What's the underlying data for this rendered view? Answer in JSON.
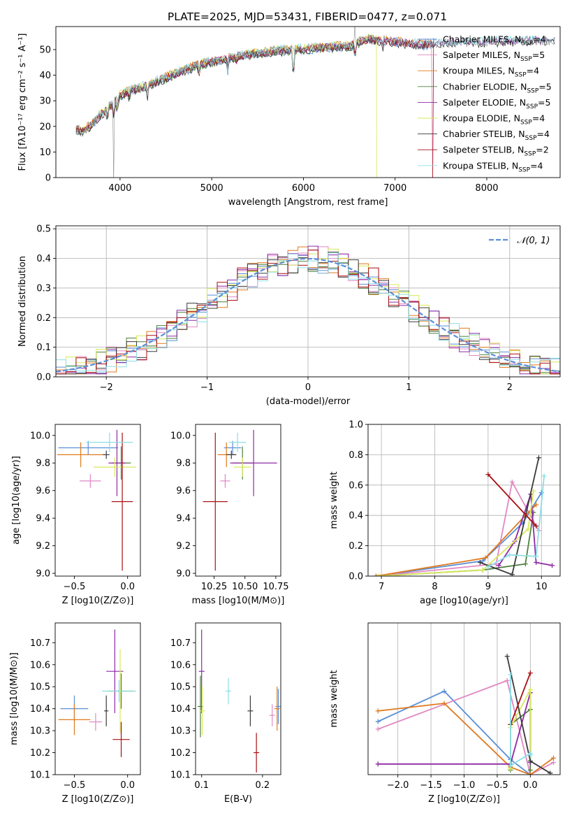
{
  "colors": {
    "chabrier_miles": "#5b8fd6",
    "salpeter_miles": "#e088c3",
    "kroupa_miles": "#e07a1f",
    "chabrier_elodie": "#4f7f3e",
    "salpeter_elodie": "#8e2aa6",
    "kroupa_elodie": "#d8e85a",
    "chabrier_stelib": "#3a3a3a",
    "salpeter_stelib": "#a80f12",
    "kroupa_stelib": "#8ddde6",
    "gauss": "#5b8fd6"
  },
  "title": "PLATE=2025, MJD=53431, FIBERID=0477, z=0.071",
  "chart_data": [
    {
      "id": "spectrum",
      "type": "line",
      "xlabel": "wavelength [Angstrom, rest frame]",
      "ylabel": "Flux [fλ10⁻¹⁷ erg cm⁻² s⁻¹ A⁻¹]",
      "xlim": [
        3300,
        8800
      ],
      "ylim": [
        0,
        59
      ],
      "xticks": [
        4000,
        5000,
        6000,
        7000,
        8000
      ],
      "yticks": [
        0,
        10,
        20,
        30,
        40,
        50
      ],
      "continuum": {
        "x": [
          3520,
          3600,
          3700,
          3800,
          3900,
          4000,
          4100,
          4200,
          4300,
          4500,
          4700,
          4900,
          5100,
          5300,
          5500,
          5700,
          5900,
          6100,
          6300,
          6500,
          6700,
          6900,
          7100,
          7300,
          7500,
          8000,
          8500,
          8750
        ],
        "y": [
          19,
          18,
          21,
          25,
          28,
          32,
          34,
          35,
          36,
          39,
          42,
          44.5,
          46,
          47.5,
          48.5,
          49.5,
          50,
          50.5,
          51,
          51.5,
          54,
          53.5,
          52.5,
          52,
          52.5,
          53,
          53.5,
          53.5
        ]
      },
      "legend": [
        {
          "label": "Chabrier MILES, N_SSP=4",
          "color_key": "chabrier_miles"
        },
        {
          "label": "Salpeter MILES, N_SSP=5",
          "color_key": "salpeter_miles"
        },
        {
          "label": "Kroupa MILES, N_SSP=4",
          "color_key": "kroupa_miles"
        },
        {
          "label": "Chabrier ELODIE, N_SSP=5",
          "color_key": "chabrier_elodie"
        },
        {
          "label": "Salpeter ELODIE, N_SSP=5",
          "color_key": "salpeter_elodie"
        },
        {
          "label": "Kroupa ELODIE, N_SSP=4",
          "color_key": "kroupa_elodie"
        },
        {
          "label": "Chabrier STELIB, N_SSP=4",
          "color_key": "chabrier_stelib"
        },
        {
          "label": "Salpeter STELIB, N_SSP=2",
          "color_key": "salpeter_stelib"
        },
        {
          "label": "Kroupa STELIB, N_SSP=4",
          "color_key": "kroupa_stelib"
        }
      ]
    },
    {
      "id": "residuals",
      "type": "histogram",
      "xlabel": "(data-model)/error",
      "ylabel": "Normed distribution",
      "xlim": [
        -2.5,
        2.5
      ],
      "ylim": [
        0,
        0.51
      ],
      "xticks": [
        -2,
        -1,
        0,
        1,
        2
      ],
      "yticks": [
        0.0,
        0.1,
        0.2,
        0.3,
        0.4,
        0.5
      ],
      "legend_label": "𝒩(0, 1)",
      "bin_width": 0.1,
      "bin_start": -2.5
    },
    {
      "id": "age_vs_Z",
      "type": "errorbar",
      "xlabel": "Z [log10(Z/Z⊙)]",
      "ylabel": "age  [log10(age/yr)]",
      "xlim": [
        -0.68,
        0.12
      ],
      "ylim": [
        8.98,
        10.08
      ],
      "xticks": [
        -0.5,
        0.0
      ],
      "yticks": [
        9.0,
        9.2,
        9.4,
        9.6,
        9.8,
        10.0
      ],
      "points": [
        {
          "color_key": "chabrier_miles",
          "x": -0.37,
          "xerr": 0.28,
          "y": 9.91,
          "yerr": 0.05
        },
        {
          "color_key": "salpeter_miles",
          "x": -0.35,
          "xerr": 0.1,
          "y": 9.67,
          "yerr": 0.05
        },
        {
          "color_key": "kroupa_miles",
          "x": -0.44,
          "xerr": 0.22,
          "y": 9.86,
          "yerr": 0.09
        },
        {
          "color_key": "chabrier_elodie",
          "x": -0.06,
          "xerr": 0.09,
          "y": 9.8,
          "yerr": 0.12
        },
        {
          "color_key": "salpeter_elodie",
          "x": -0.1,
          "xerr": 0.08,
          "y": 9.8,
          "yerr": 0.24
        },
        {
          "color_key": "kroupa_elodie",
          "x": -0.12,
          "xerr": 0.2,
          "y": 9.77,
          "yerr": 0.07
        },
        {
          "color_key": "chabrier_stelib",
          "x": -0.2,
          "xerr": 0.03,
          "y": 9.86,
          "yerr": 0.03
        },
        {
          "color_key": "salpeter_stelib",
          "x": -0.05,
          "xerr": 0.1,
          "y": 9.52,
          "yerr": 0.5
        },
        {
          "color_key": "kroupa_stelib",
          "x": -0.17,
          "xerr": 0.22,
          "y": 9.95,
          "yerr": 0.07
        }
      ]
    },
    {
      "id": "age_vs_mass",
      "type": "errorbar",
      "xlabel": "mass [log10(M/M⊙)]",
      "ylabel": "",
      "xlim": [
        10.1,
        10.79
      ],
      "ylim": [
        8.98,
        10.08
      ],
      "xticks": [
        10.25,
        10.5,
        10.75
      ],
      "yticks": [
        9.0,
        9.2,
        9.4,
        9.6,
        9.8,
        10.0
      ],
      "points": [
        {
          "color_key": "chabrier_miles",
          "x": 10.4,
          "xerr": 0.07,
          "y": 9.91,
          "yerr": 0.05
        },
        {
          "color_key": "salpeter_miles",
          "x": 10.34,
          "xerr": 0.04,
          "y": 9.67,
          "yerr": 0.05
        },
        {
          "color_key": "kroupa_miles",
          "x": 10.35,
          "xerr": 0.07,
          "y": 9.86,
          "yerr": 0.09
        },
        {
          "color_key": "chabrier_elodie",
          "x": 10.48,
          "xerr": 0.08,
          "y": 9.8,
          "yerr": 0.12
        },
        {
          "color_key": "salpeter_elodie",
          "x": 10.57,
          "xerr": 0.19,
          "y": 9.8,
          "yerr": 0.24
        },
        {
          "color_key": "kroupa_elodie",
          "x": 10.48,
          "xerr": 0.07,
          "y": 9.77,
          "yerr": 0.07
        },
        {
          "color_key": "chabrier_stelib",
          "x": 10.39,
          "xerr": 0.04,
          "y": 9.86,
          "yerr": 0.03
        },
        {
          "color_key": "salpeter_stelib",
          "x": 10.26,
          "xerr": 0.1,
          "y": 9.52,
          "yerr": 0.5
        },
        {
          "color_key": "kroupa_stelib",
          "x": 10.44,
          "xerr": 0.07,
          "y": 9.95,
          "yerr": 0.07
        }
      ]
    },
    {
      "id": "weight_vs_age",
      "type": "line",
      "xlabel": "age  [log10(age/yr)]",
      "ylabel": "mass weight",
      "xlim": [
        6.75,
        10.35
      ],
      "ylim": [
        0,
        1.0
      ],
      "xticks": [
        7,
        8,
        9,
        10
      ],
      "yticks": [
        0.0,
        0.2,
        0.4,
        0.6,
        0.8,
        1.0
      ],
      "series": [
        {
          "color_key": "chabrier_miles",
          "x": [
            6.9,
            8.9,
            9.65,
            10.0
          ],
          "y": [
            0.0,
            0.1,
            0.35,
            0.55
          ]
        },
        {
          "color_key": "salpeter_miles",
          "x": [
            6.9,
            9.15,
            9.45,
            9.95
          ],
          "y": [
            0.0,
            0.08,
            0.62,
            0.3
          ]
        },
        {
          "color_key": "kroupa_miles",
          "x": [
            6.9,
            8.95,
            9.7,
            9.9
          ],
          "y": [
            0.0,
            0.12,
            0.4,
            0.47
          ]
        },
        {
          "color_key": "chabrier_elodie",
          "x": [
            6.95,
            8.9,
            9.7,
            9.85
          ],
          "y": [
            0.0,
            0.04,
            0.08,
            0.42
          ]
        },
        {
          "color_key": "salpeter_elodie",
          "x": [
            9.2,
            9.5,
            9.8,
            9.9,
            10.2
          ],
          "y": [
            0.07,
            0.23,
            0.54,
            0.09,
            0.07
          ]
        },
        {
          "color_key": "kroupa_elodie",
          "x": [
            6.95,
            8.9,
            9.75,
            9.85
          ],
          "y": [
            0.0,
            0.04,
            0.31,
            0.56
          ]
        },
        {
          "color_key": "chabrier_stelib",
          "x": [
            8.85,
            9.45,
            9.95
          ],
          "y": [
            0.09,
            0.01,
            0.78
          ]
        },
        {
          "color_key": "salpeter_stelib",
          "x": [
            9.0,
            9.9
          ],
          "y": [
            0.67,
            0.33
          ]
        },
        {
          "color_key": "kroupa_stelib",
          "x": [
            9.0,
            9.4,
            9.9,
            10.05
          ],
          "y": [
            0.06,
            0.14,
            0.13,
            0.66
          ]
        }
      ]
    },
    {
      "id": "mass_vs_Z",
      "type": "errorbar",
      "xlabel": "Z [log10(Z/Z⊙)]",
      "ylabel": "mass [log10(M/M⊙)]",
      "xlim": [
        -0.68,
        0.12
      ],
      "ylim": [
        10.1,
        10.79
      ],
      "xticks": [
        -0.5,
        0.0
      ],
      "yticks": [
        10.1,
        10.2,
        10.3,
        10.4,
        10.5,
        10.6,
        10.7
      ],
      "points": [
        {
          "color_key": "chabrier_miles",
          "x": -0.5,
          "xerr": 0.13,
          "y": 10.4,
          "yerr": 0.06
        },
        {
          "color_key": "salpeter_miles",
          "x": -0.3,
          "xerr": 0.06,
          "y": 10.34,
          "yerr": 0.04
        },
        {
          "color_key": "kroupa_miles",
          "x": -0.5,
          "xerr": 0.15,
          "y": 10.35,
          "yerr": 0.07
        },
        {
          "color_key": "chabrier_elodie",
          "x": -0.06,
          "xerr": 0.12,
          "y": 10.48,
          "yerr": 0.08
        },
        {
          "color_key": "salpeter_elodie",
          "x": -0.12,
          "xerr": 0.08,
          "y": 10.57,
          "yerr": 0.19
        },
        {
          "color_key": "kroupa_elodie",
          "x": -0.07,
          "xerr": 0.13,
          "y": 10.48,
          "yerr": 0.19
        },
        {
          "color_key": "chabrier_stelib",
          "x": -0.2,
          "xerr": 0.02,
          "y": 10.39,
          "yerr": 0.07
        },
        {
          "color_key": "salpeter_stelib",
          "x": -0.06,
          "xerr": 0.08,
          "y": 10.26,
          "yerr": 0.08
        },
        {
          "color_key": "kroupa_stelib",
          "x": -0.08,
          "xerr": 0.16,
          "y": 10.48,
          "yerr": 0.05
        }
      ]
    },
    {
      "id": "mass_vs_ebv",
      "type": "errorbar",
      "xlabel": "E(B-V)",
      "ylabel": "",
      "xlim": [
        0.09,
        0.23
      ],
      "ylim": [
        10.1,
        10.79
      ],
      "xticks": [
        0.1,
        0.2
      ],
      "yticks": [
        10.1,
        10.2,
        10.3,
        10.4,
        10.5,
        10.6,
        10.7
      ],
      "points": [
        {
          "color_key": "chabrier_miles",
          "x": 0.226,
          "y": 10.41,
          "yerr": 0.08
        },
        {
          "color_key": "salpeter_miles",
          "x": 0.216,
          "y": 10.37,
          "yerr": 0.05
        },
        {
          "color_key": "kroupa_miles",
          "x": 0.224,
          "y": 10.4,
          "yerr": 0.1
        },
        {
          "color_key": "chabrier_elodie",
          "x": 0.098,
          "y": 10.41,
          "yerr": 0.14
        },
        {
          "color_key": "salpeter_elodie",
          "x": 0.1,
          "y": 10.57,
          "yerr": 0.19
        },
        {
          "color_key": "kroupa_elodie",
          "x": 0.101,
          "y": 10.39,
          "yerr": 0.11
        },
        {
          "color_key": "chabrier_stelib",
          "x": 0.18,
          "y": 10.39,
          "yerr": 0.07
        },
        {
          "color_key": "salpeter_stelib",
          "x": 0.19,
          "y": 10.2,
          "yerr": 0.09
        },
        {
          "color_key": "kroupa_stelib",
          "x": 0.144,
          "y": 10.48,
          "yerr": 0.06
        }
      ]
    },
    {
      "id": "weight_vs_Z",
      "type": "line",
      "xlabel": "Z [log10(Z/Z⊙)]",
      "ylabel": "mass weight",
      "xlim": [
        -2.45,
        0.45
      ],
      "ylim": [
        0,
        1.0
      ],
      "xticks": [
        -2.0,
        -1.5,
        -1.0,
        -0.5,
        0.0
      ],
      "series": [
        {
          "color_key": "chabrier_miles",
          "x": [
            -2.3,
            -1.3,
            -0.3,
            0.0
          ],
          "y": [
            0.35,
            0.55,
            0.1,
            0.0
          ]
        },
        {
          "color_key": "salpeter_miles",
          "x": [
            -2.3,
            -0.35,
            0.0,
            0.35
          ],
          "y": [
            0.3,
            0.62,
            0.0,
            0.08
          ]
        },
        {
          "color_key": "kroupa_miles",
          "x": [
            -2.3,
            -1.3,
            -0.3,
            0.0,
            0.35
          ],
          "y": [
            0.42,
            0.47,
            0.05,
            0.0,
            0.11
          ]
        },
        {
          "color_key": "chabrier_elodie",
          "x": [
            -0.3,
            -0.3,
            0.0,
            0.0
          ],
          "y": [
            0.03,
            0.33,
            0.43,
            0.03
          ]
        },
        {
          "color_key": "salpeter_elodie",
          "x": [
            -2.3,
            -0.3,
            0.0,
            0.0
          ],
          "y": [
            0.07,
            0.07,
            0.54,
            0.08
          ]
        },
        {
          "color_key": "kroupa_elodie",
          "x": [
            -0.3,
            -0.3,
            0.0,
            0.0
          ],
          "y": [
            0.04,
            0.31,
            0.56,
            0.09
          ]
        },
        {
          "color_key": "chabrier_stelib",
          "x": [
            -0.35,
            0.0,
            0.3
          ],
          "y": [
            0.78,
            0.09,
            0.01
          ]
        },
        {
          "color_key": "salpeter_stelib",
          "x": [
            -0.3,
            0.0
          ],
          "y": [
            0.33,
            0.67
          ]
        },
        {
          "color_key": "kroupa_stelib",
          "x": [
            -0.3,
            -0.3,
            0.0,
            0.0
          ],
          "y": [
            0.66,
            0.06,
            0.14,
            0.13
          ]
        }
      ]
    }
  ]
}
